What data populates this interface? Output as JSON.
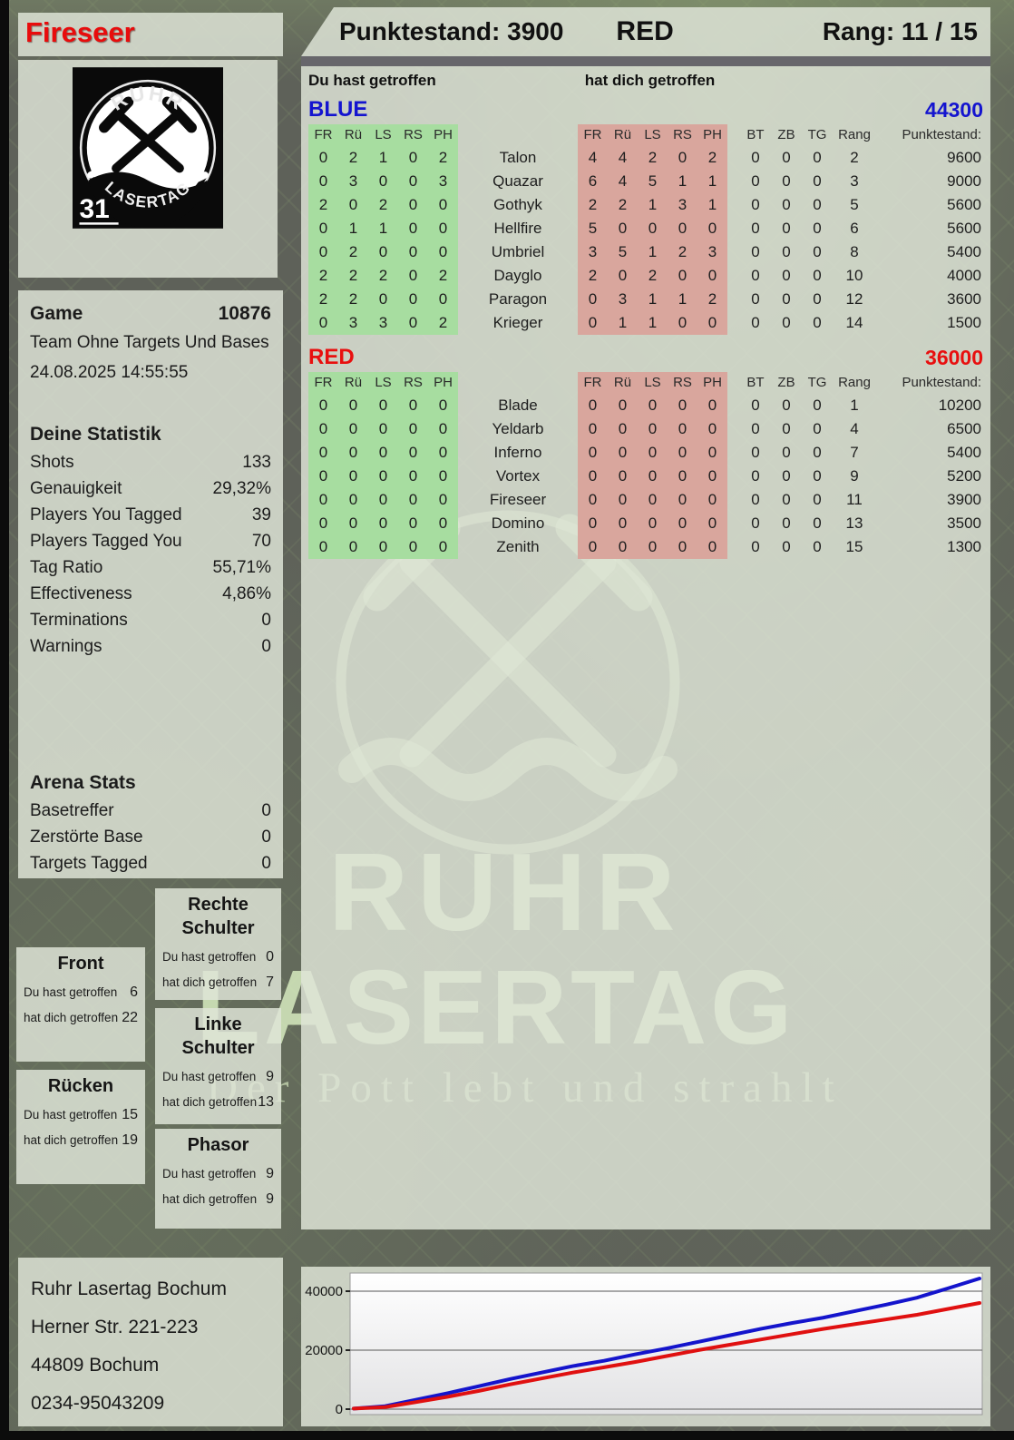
{
  "header": {
    "score": "Punktestand: 3900",
    "team": "RED",
    "rank": "Rang: 11 / 15"
  },
  "hit_labels": {
    "you": "Du hast getroffen",
    "them": "hat dich getroffen"
  },
  "table_headers": {
    "body": [
      "FR",
      "Rü",
      "LS",
      "RS",
      "PH"
    ],
    "extra": [
      "BT",
      "ZB",
      "TG",
      "Rang",
      "Punktestand:"
    ]
  },
  "teams": [
    {
      "name": "BLUE",
      "color": "#1414cf",
      "total": "44300",
      "players": [
        {
          "name": "Talon",
          "you": [
            0,
            2,
            1,
            0,
            2
          ],
          "them": [
            4,
            4,
            2,
            0,
            2
          ],
          "bt": 0,
          "zb": 0,
          "tg": 0,
          "rang": 2,
          "punkte": 9600
        },
        {
          "name": "Quazar",
          "you": [
            0,
            3,
            0,
            0,
            3
          ],
          "them": [
            6,
            4,
            5,
            1,
            1
          ],
          "bt": 0,
          "zb": 0,
          "tg": 0,
          "rang": 3,
          "punkte": 9000
        },
        {
          "name": "Gothyk",
          "you": [
            2,
            0,
            2,
            0,
            0
          ],
          "them": [
            2,
            2,
            1,
            3,
            1
          ],
          "bt": 0,
          "zb": 0,
          "tg": 0,
          "rang": 5,
          "punkte": 5600
        },
        {
          "name": "Hellfire",
          "you": [
            0,
            1,
            1,
            0,
            0
          ],
          "them": [
            5,
            0,
            0,
            0,
            0
          ],
          "bt": 0,
          "zb": 0,
          "tg": 0,
          "rang": 6,
          "punkte": 5600
        },
        {
          "name": "Umbriel",
          "you": [
            0,
            2,
            0,
            0,
            0
          ],
          "them": [
            3,
            5,
            1,
            2,
            3
          ],
          "bt": 0,
          "zb": 0,
          "tg": 0,
          "rang": 8,
          "punkte": 5400
        },
        {
          "name": "Dayglo",
          "you": [
            2,
            2,
            2,
            0,
            2
          ],
          "them": [
            2,
            0,
            2,
            0,
            0
          ],
          "bt": 0,
          "zb": 0,
          "tg": 0,
          "rang": 10,
          "punkte": 4000
        },
        {
          "name": "Paragon",
          "you": [
            2,
            2,
            0,
            0,
            0
          ],
          "them": [
            0,
            3,
            1,
            1,
            2
          ],
          "bt": 0,
          "zb": 0,
          "tg": 0,
          "rang": 12,
          "punkte": 3600
        },
        {
          "name": "Krieger",
          "you": [
            0,
            3,
            3,
            0,
            2
          ],
          "them": [
            0,
            1,
            1,
            0,
            0
          ],
          "bt": 0,
          "zb": 0,
          "tg": 0,
          "rang": 14,
          "punkte": 1500
        }
      ]
    },
    {
      "name": "RED",
      "color": "#e80f0f",
      "total": "36000",
      "players": [
        {
          "name": "Blade",
          "you": [
            0,
            0,
            0,
            0,
            0
          ],
          "them": [
            0,
            0,
            0,
            0,
            0
          ],
          "bt": 0,
          "zb": 0,
          "tg": 0,
          "rang": 1,
          "punkte": 10200
        },
        {
          "name": "Yeldarb",
          "you": [
            0,
            0,
            0,
            0,
            0
          ],
          "them": [
            0,
            0,
            0,
            0,
            0
          ],
          "bt": 0,
          "zb": 0,
          "tg": 0,
          "rang": 4,
          "punkte": 6500
        },
        {
          "name": "Inferno",
          "you": [
            0,
            0,
            0,
            0,
            0
          ],
          "them": [
            0,
            0,
            0,
            0,
            0
          ],
          "bt": 0,
          "zb": 0,
          "tg": 0,
          "rang": 7,
          "punkte": 5400
        },
        {
          "name": "Vortex",
          "you": [
            0,
            0,
            0,
            0,
            0
          ],
          "them": [
            0,
            0,
            0,
            0,
            0
          ],
          "bt": 0,
          "zb": 0,
          "tg": 0,
          "rang": 9,
          "punkte": 5200
        },
        {
          "name": "Fireseer",
          "you": [
            0,
            0,
            0,
            0,
            0
          ],
          "them": [
            0,
            0,
            0,
            0,
            0
          ],
          "bt": 0,
          "zb": 0,
          "tg": 0,
          "rang": 11,
          "punkte": 3900
        },
        {
          "name": "Domino",
          "you": [
            0,
            0,
            0,
            0,
            0
          ],
          "them": [
            0,
            0,
            0,
            0,
            0
          ],
          "bt": 0,
          "zb": 0,
          "tg": 0,
          "rang": 13,
          "punkte": 3500
        },
        {
          "name": "Zenith",
          "you": [
            0,
            0,
            0,
            0,
            0
          ],
          "them": [
            0,
            0,
            0,
            0,
            0
          ],
          "bt": 0,
          "zb": 0,
          "tg": 0,
          "rang": 15,
          "punkte": 1300
        }
      ]
    }
  ],
  "sidebar": {
    "player_name": "Fireseer",
    "logo": {
      "arc_top": "RUHR",
      "arc_bottom": "LASERTAG",
      "pack_number": "31"
    },
    "game": {
      "label": "Game",
      "id": "10876",
      "mode": "Team Ohne Targets Und Bases",
      "datetime": "24.08.2025 14:55:55"
    },
    "stats": {
      "title": "Deine Statistik",
      "rows": [
        [
          "Shots",
          "133"
        ],
        [
          "Genauigkeit",
          "29,32%"
        ],
        [
          "Players You Tagged",
          "39"
        ],
        [
          "Players Tagged You",
          "70"
        ],
        [
          "Tag Ratio",
          "55,71%"
        ],
        [
          "Effectiveness",
          "4,86%"
        ],
        [
          "Terminations",
          "0"
        ],
        [
          "Warnings",
          "0"
        ]
      ]
    },
    "arena": {
      "title": "Arena Stats",
      "rows": [
        [
          "Basetreffer",
          "0"
        ],
        [
          "Zerstörte Base",
          "0"
        ],
        [
          "Targets Tagged",
          "0"
        ]
      ]
    },
    "body_parts": [
      {
        "title": "Front",
        "you": "6",
        "them": "22"
      },
      {
        "title": "Rücken",
        "you": "15",
        "them": "19"
      },
      {
        "title": "Rechte Schulter",
        "you": "0",
        "them": "7"
      },
      {
        "title": "Linke Schulter",
        "you": "9",
        "them": "13"
      },
      {
        "title": "Phasor",
        "you": "9",
        "them": "9"
      }
    ],
    "address": [
      "Ruhr Lasertag Bochum",
      "Herner Str. 221-223",
      "44809 Bochum",
      "0234-95043209"
    ]
  },
  "watermark": {
    "line1": "RUHR",
    "line2": "LASERTAG",
    "subtitle": "Der Pott lebt und strahlt"
  },
  "chart_data": {
    "type": "line",
    "title": "",
    "xlabel": "",
    "ylabel": "",
    "x": [
      0,
      5,
      10,
      15,
      20,
      25,
      30,
      35,
      40,
      45,
      50,
      55,
      60,
      65,
      70,
      75,
      80,
      85,
      90,
      95,
      100
    ],
    "series": [
      {
        "name": "BLUE",
        "color": "#1414cc",
        "values": [
          200,
          1000,
          3200,
          5400,
          7800,
          10200,
          12400,
          14600,
          16400,
          18600,
          20600,
          22800,
          25000,
          27200,
          29200,
          31000,
          33200,
          35400,
          37800,
          41000,
          44300
        ]
      },
      {
        "name": "RED",
        "color": "#e01010",
        "values": [
          200,
          700,
          2400,
          4200,
          6200,
          8400,
          10400,
          12400,
          14200,
          16000,
          18000,
          20000,
          21800,
          23600,
          25400,
          27200,
          28800,
          30400,
          32000,
          34000,
          36000
        ]
      }
    ],
    "ylim": [
      0,
      45500
    ],
    "yticks": [
      0,
      20000,
      40000
    ],
    "grid": true,
    "legend": "none"
  }
}
